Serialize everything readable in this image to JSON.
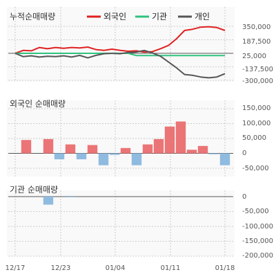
{
  "colors": {
    "foreign": "#e02020",
    "institution": "#2ec27e",
    "individual": "#555555",
    "bar_pos": "#eb7476",
    "bar_neg": "#8fbbe0",
    "grid": "#cccccc",
    "zero": "#555555",
    "panel_bg": "#f9f9f9"
  },
  "chart_data": [
    {
      "type": "line",
      "title": "누적순매매량",
      "legend": [
        "외국인",
        "기관",
        "개인"
      ],
      "yticks": [
        "350,000",
        "187,500",
        "25,000",
        "-137,500",
        "-300,000"
      ],
      "ylim": [
        -300000,
        350000
      ],
      "series": [
        {
          "name": "외국인",
          "values": [
            25000,
            60000,
            55000,
            95000,
            80000,
            95000,
            85000,
            95000,
            90000,
            100000,
            70000,
            60000,
            75000,
            60000,
            50000,
            55000,
            40000,
            45000,
            80000,
            120000,
            200000,
            300000,
            315000,
            340000,
            345000,
            335000,
            300000
          ]
        },
        {
          "name": "기관",
          "values": [
            25000,
            25000,
            25000,
            25000,
            25000,
            25000,
            25000,
            25000,
            25000,
            25000,
            25000,
            25000,
            25000,
            25000,
            25000,
            -2000,
            -2000,
            -2000,
            -2000,
            -2000,
            -2000,
            -2000,
            -2000,
            -2000,
            -2000,
            -2000,
            -2000
          ]
        },
        {
          "name": "개인",
          "values": [
            25000,
            -15000,
            -5000,
            -20000,
            -10000,
            -15000,
            -5000,
            -20000,
            0,
            -30000,
            0,
            20000,
            25000,
            20000,
            35000,
            40000,
            60000,
            30000,
            -10000,
            -80000,
            -150000,
            -230000,
            -240000,
            -260000,
            -270000,
            -260000,
            -220000
          ]
        }
      ]
    },
    {
      "type": "bar",
      "title": "외국인 순매매량",
      "yticks": [
        "150,000",
        "100,000",
        "50,000",
        "0",
        "-50,000"
      ],
      "ylim": [
        -50000,
        150000
      ],
      "values": [
        0,
        45000,
        0,
        48000,
        -20000,
        30000,
        -20000,
        28000,
        -40000,
        -5000,
        18000,
        -40000,
        30000,
        48000,
        90000,
        107000,
        12000,
        25000,
        -3000,
        -40000
      ]
    },
    {
      "type": "bar",
      "title": "기관 순매매량",
      "yticks": [
        "0",
        "-50,000",
        "-100,000",
        "-150,000",
        "-200,000"
      ],
      "ylim": [
        -200000,
        0
      ],
      "values": [
        0,
        0,
        0,
        -27000,
        0,
        -2000,
        0,
        0,
        0,
        0,
        0,
        0,
        0,
        0,
        0,
        0,
        0,
        0,
        0,
        0
      ]
    }
  ],
  "xticks": [
    "12/17",
    "12/23",
    "01/04",
    "01/11",
    "01/18"
  ]
}
